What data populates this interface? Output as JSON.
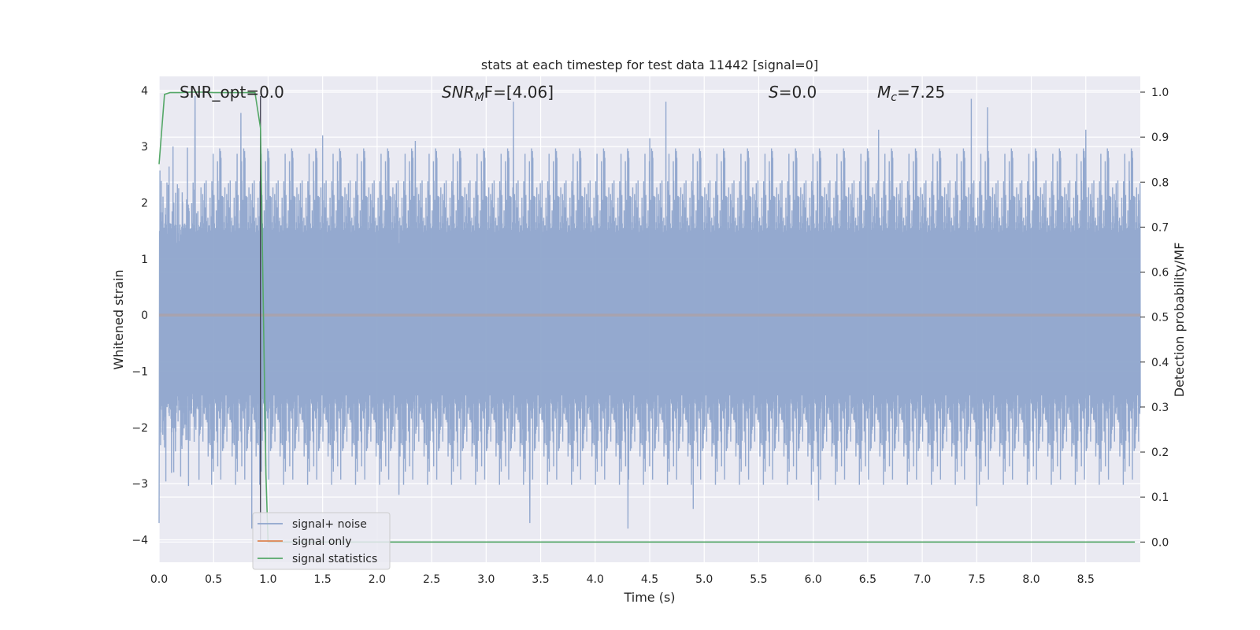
{
  "chart_data": {
    "type": "line",
    "title": "stats at each timestep for test data 11442 [signal=0]",
    "xlabel": "Time (s)",
    "ylabel_left": "Whitened strain",
    "ylabel_right": "Detection probability/MF",
    "xlim": [
      0.0,
      9.0
    ],
    "ylim_left": [
      -4.4,
      4.25
    ],
    "ylim_right": [
      -0.045,
      1.035
    ],
    "x_ticks": [
      "0.0",
      "0.5",
      "1.0",
      "1.5",
      "2.0",
      "2.5",
      "3.0",
      "3.5",
      "4.0",
      "4.5",
      "5.0",
      "5.5",
      "6.0",
      "6.5",
      "7.0",
      "7.5",
      "8.0",
      "8.5"
    ],
    "y_ticks_left": [
      "−4",
      "−3",
      "−2",
      "−1",
      "0",
      "1",
      "2",
      "3",
      "4"
    ],
    "y_ticks_right": [
      "0.0",
      "0.1",
      "0.2",
      "0.3",
      "0.4",
      "0.5",
      "0.6",
      "0.7",
      "0.8",
      "0.9",
      "1.0"
    ],
    "grid": true,
    "legend_position": "lower-left",
    "annotations": {
      "snr_opt": "SNR_opt=0.0",
      "snr_mf_base": "SNR",
      "snr_mf_sub": "M",
      "snr_mf_rest": "F=[4.06]",
      "s_stat_base": "S",
      "s_stat_rest": "=0.0",
      "mc_base": "M",
      "mc_sub": "c",
      "mc_rest": "=7.25"
    },
    "marker_line_time": 0.93,
    "series": [
      {
        "name": "signal+ noise",
        "axis": "left",
        "color": "#8fa5cc",
        "envelope": {
          "typical_range": [
            -1.6,
            1.5
          ],
          "max": 3.9,
          "min": -3.8,
          "peaks": [
            {
              "x": 0.33,
              "y": 3.9
            },
            {
              "x": 0.75,
              "y": 3.6
            },
            {
              "x": 0.85,
              "y": 3.3
            },
            {
              "x": 1.5,
              "y": 3.2
            },
            {
              "x": 2.35,
              "y": 3.1
            },
            {
              "x": 3.25,
              "y": 3.8
            },
            {
              "x": 4.5,
              "y": 3.15
            },
            {
              "x": 4.65,
              "y": 3.8
            },
            {
              "x": 6.6,
              "y": 3.3
            },
            {
              "x": 7.45,
              "y": 3.85
            },
            {
              "x": 7.6,
              "y": 3.7
            },
            {
              "x": 8.5,
              "y": 3.3
            },
            {
              "x": 0.0,
              "y": -3.7
            },
            {
              "x": 0.85,
              "y": -3.8
            },
            {
              "x": 2.2,
              "y": -3.2
            },
            {
              "x": 3.4,
              "y": -3.7
            },
            {
              "x": 4.3,
              "y": -3.8
            },
            {
              "x": 4.9,
              "y": -3.45
            },
            {
              "x": 6.05,
              "y": -3.3
            },
            {
              "x": 7.5,
              "y": -3.4
            }
          ]
        }
      },
      {
        "name": "signal only",
        "axis": "left",
        "color": "#dd8452",
        "x": [
          0.0,
          9.0
        ],
        "y": [
          0.0,
          0.0
        ]
      },
      {
        "name": "signal statistics",
        "axis": "right",
        "color": "#55a868",
        "x": [
          0.0,
          0.05,
          0.1,
          0.2,
          0.3,
          0.4,
          0.5,
          0.6,
          0.7,
          0.8,
          0.88,
          0.93,
          0.98,
          1.0,
          1.2,
          2.0,
          3.0,
          4.0,
          5.0,
          6.0,
          7.0,
          8.0,
          9.0
        ],
        "y": [
          0.84,
          0.995,
          0.999,
          0.999,
          1.0,
          1.0,
          0.999,
          0.999,
          0.999,
          0.999,
          0.999,
          0.92,
          0.15,
          0.0,
          0.0,
          0.0,
          0.0,
          0.0,
          0.0,
          0.0,
          0.0,
          0.0,
          0.0
        ]
      }
    ]
  }
}
